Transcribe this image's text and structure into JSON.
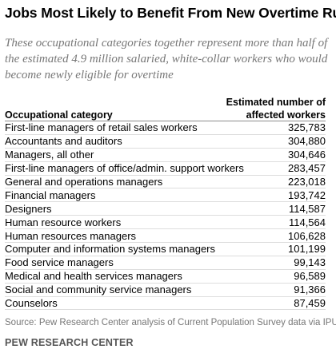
{
  "chart_data": {
    "type": "table",
    "title": "Jobs Most Likely to Benefit From New Overtime Rule",
    "subtitle": "These occupational categories together represent more than half of the estimated 4.9 million salaried, white-collar workers who  would  become newly eligible for overtime",
    "columns": [
      "Occupational category",
      "Estimated number of affected workers"
    ],
    "rows": [
      {
        "category": "First-line managers of retail sales workers",
        "value": "325,783"
      },
      {
        "category": "Accountants and auditors",
        "value": "304,880"
      },
      {
        "category": "Managers, all other",
        "value": "304,646"
      },
      {
        "category": "First-line managers of office/admin. support workers",
        "value": "283,457"
      },
      {
        "category": "General and operations managers",
        "value": "223,018"
      },
      {
        "category": "Financial managers",
        "value": "193,742"
      },
      {
        "category": "Designers",
        "value": "114,587"
      },
      {
        "category": "Human resource workers",
        "value": "114,564"
      },
      {
        "category": "Human resources managers",
        "value": "106,628"
      },
      {
        "category": "Computer and information systems managers",
        "value": "101,199"
      },
      {
        "category": "Food service managers",
        "value": "99,143"
      },
      {
        "category": "Medical and health services managers",
        "value": "96,589"
      },
      {
        "category": "Social and community service managers",
        "value": "91,366"
      },
      {
        "category": "Counselors",
        "value": "87,459"
      }
    ],
    "source": "Source: Pew Research Center analysis of Current Population Survey data via IPUMS",
    "brand": "PEW RESEARCH CENTER"
  }
}
